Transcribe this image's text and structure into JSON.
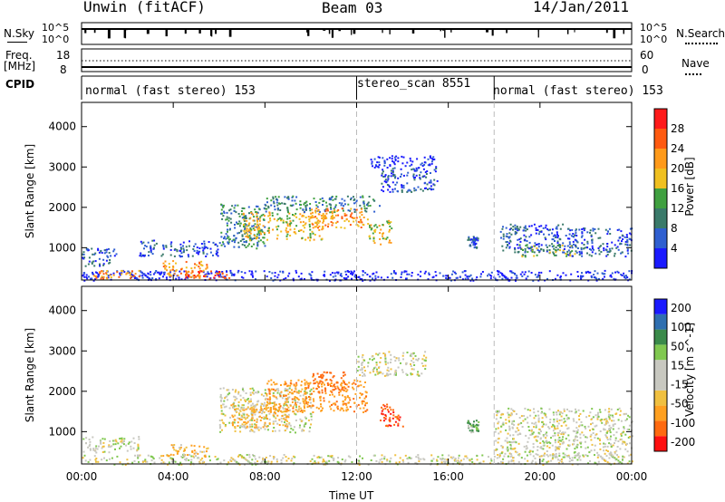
{
  "header": {
    "station": "Unwin (fitACF)",
    "beam": "Beam 03",
    "date": "14/Jan/2011"
  },
  "noise_panel": {
    "left_label": "N.Sky",
    "left_ticks": [
      "10^5",
      "10^0"
    ],
    "right_label": "N.Search",
    "right_ticks": [
      "10^5",
      "10^0"
    ]
  },
  "freq_panel": {
    "left_label_line1": "Freq.",
    "left_label_line2": "[MHz]",
    "left_ticks": [
      "18",
      "8"
    ],
    "right_label": "Nave",
    "right_ticks": [
      "60",
      "0"
    ]
  },
  "cpid": {
    "label": "CPID",
    "segments": [
      {
        "text": "normal (fast stereo) 153",
        "start": "00:00",
        "end": "12:00"
      },
      {
        "text": "stereo_scan 8551",
        "start": "12:00",
        "end": "18:00"
      },
      {
        "text": "normal (fast stereo) 153",
        "start": "18:00",
        "end": "24:00"
      }
    ]
  },
  "colors": {
    "power_scale": [
      "#1a1aff",
      "#2f5fd0",
      "#3a7a6a",
      "#40a040",
      "#f0c020",
      "#ff9a1a",
      "#ff5a10",
      "#ff1a1a"
    ],
    "velocity_scale": [
      "#ff1010",
      "#ff6a10",
      "#ffa020",
      "#f0c040",
      "#c8c8c0",
      "#c8c8c0",
      "#80c850",
      "#3a8a4a",
      "#2f6fb0",
      "#1a1aff"
    ]
  },
  "chart_data": [
    {
      "type": "heatmap",
      "title": "Power",
      "xlabel": "",
      "ylabel": "Slant Range [km]",
      "x_ticks": [
        "00:00",
        "04:00",
        "08:00",
        "12:00",
        "16:00",
        "20:00",
        "00:00"
      ],
      "xlim_hours": [
        0,
        24
      ],
      "y_ticks": [
        "1000",
        "2000",
        "3000",
        "4000"
      ],
      "ylim": [
        200,
        4600
      ],
      "colorbar": {
        "label": "Power [dB]",
        "ticks": [
          "4",
          "8",
          "12",
          "16",
          "20",
          "24",
          "28"
        ],
        "range": [
          0,
          32
        ]
      },
      "echo_regions": [
        {
          "start_hour": 0.0,
          "end_hour": 24.0,
          "range_km": [
            200,
            450
          ],
          "level": 4
        },
        {
          "start_hour": 0.0,
          "end_hour": 1.5,
          "range_km": [
            550,
            1000
          ],
          "level": 8
        },
        {
          "start_hour": 0.5,
          "end_hour": 2.5,
          "range_km": [
            250,
            450
          ],
          "level": 24
        },
        {
          "start_hour": 2.5,
          "end_hour": 6.0,
          "range_km": [
            800,
            1200
          ],
          "level": 8
        },
        {
          "start_hour": 3.5,
          "end_hour": 5.5,
          "range_km": [
            300,
            700
          ],
          "level": 22
        },
        {
          "start_hour": 4.5,
          "end_hour": 6.5,
          "range_km": [
            250,
            450
          ],
          "level": 26
        },
        {
          "start_hour": 6.0,
          "end_hour": 8.0,
          "range_km": [
            1000,
            2100
          ],
          "level": 10
        },
        {
          "start_hour": 7.0,
          "end_hour": 10.5,
          "range_km": [
            1200,
            1900
          ],
          "level": 18
        },
        {
          "start_hour": 8.0,
          "end_hour": 13.0,
          "range_km": [
            1900,
            2300
          ],
          "level": 12
        },
        {
          "start_hour": 10.0,
          "end_hour": 12.5,
          "range_km": [
            1500,
            2000
          ],
          "level": 24
        },
        {
          "start_hour": 12.5,
          "end_hour": 13.5,
          "range_km": [
            1100,
            1700
          ],
          "level": 18
        },
        {
          "start_hour": 13.0,
          "end_hour": 15.5,
          "range_km": [
            2400,
            3000
          ],
          "level": 6
        },
        {
          "start_hour": 12.5,
          "end_hour": 15.5,
          "range_km": [
            3000,
            3300
          ],
          "level": 4
        },
        {
          "start_hour": 16.8,
          "end_hour": 17.3,
          "range_km": [
            1000,
            1300
          ],
          "level": 8
        },
        {
          "start_hour": 18.2,
          "end_hour": 21.0,
          "range_km": [
            900,
            1600
          ],
          "level": 8
        },
        {
          "start_hour": 19.0,
          "end_hour": 21.5,
          "range_km": [
            800,
            1100
          ],
          "level": 14
        },
        {
          "start_hour": 21.0,
          "end_hour": 24.0,
          "range_km": [
            800,
            1500
          ],
          "level": 6
        }
      ]
    },
    {
      "type": "heatmap",
      "title": "Velocity",
      "xlabel": "Time UT",
      "ylabel": "Slant Range [km]",
      "x_ticks": [
        "00:00",
        "04:00",
        "08:00",
        "12:00",
        "16:00",
        "20:00",
        "00:00"
      ],
      "xlim_hours": [
        0,
        24
      ],
      "y_ticks": [
        "1000",
        "2000",
        "3000",
        "4000"
      ],
      "ylim": [
        200,
        4600
      ],
      "colorbar": {
        "label": "Velocity [m s^-1]",
        "ticks": [
          "200",
          "100",
          "50",
          "15",
          "-15",
          "-50",
          "-100",
          "-200"
        ],
        "range": [
          -250,
          250
        ]
      },
      "echo_regions": [
        {
          "start_hour": 0.0,
          "end_hour": 24.0,
          "range_km": [
            200,
            450
          ],
          "velocity": 0
        },
        {
          "start_hour": 0.0,
          "end_hour": 2.5,
          "range_km": [
            500,
            900
          ],
          "velocity": 0
        },
        {
          "start_hour": 3.5,
          "end_hour": 5.5,
          "range_km": [
            400,
            700
          ],
          "velocity": -30
        },
        {
          "start_hour": 6.0,
          "end_hour": 10.0,
          "range_km": [
            1000,
            2100
          ],
          "velocity": 0
        },
        {
          "start_hour": 6.5,
          "end_hour": 9.0,
          "range_km": [
            1100,
            1700
          ],
          "velocity": -40
        },
        {
          "start_hour": 8.0,
          "end_hour": 12.5,
          "range_km": [
            1500,
            2300
          ],
          "velocity": -60
        },
        {
          "start_hour": 10.0,
          "end_hour": 11.5,
          "range_km": [
            2000,
            2500
          ],
          "velocity": -100
        },
        {
          "start_hour": 12.0,
          "end_hour": 15.0,
          "range_km": [
            2400,
            3000
          ],
          "velocity": 0
        },
        {
          "start_hour": 13.0,
          "end_hour": 14.0,
          "range_km": [
            1100,
            1700
          ],
          "velocity": -150
        },
        {
          "start_hour": 16.8,
          "end_hour": 17.3,
          "range_km": [
            1000,
            1300
          ],
          "velocity": 30
        },
        {
          "start_hour": 18.0,
          "end_hour": 24.0,
          "range_km": [
            400,
            1600
          ],
          "velocity": 0
        }
      ]
    }
  ]
}
